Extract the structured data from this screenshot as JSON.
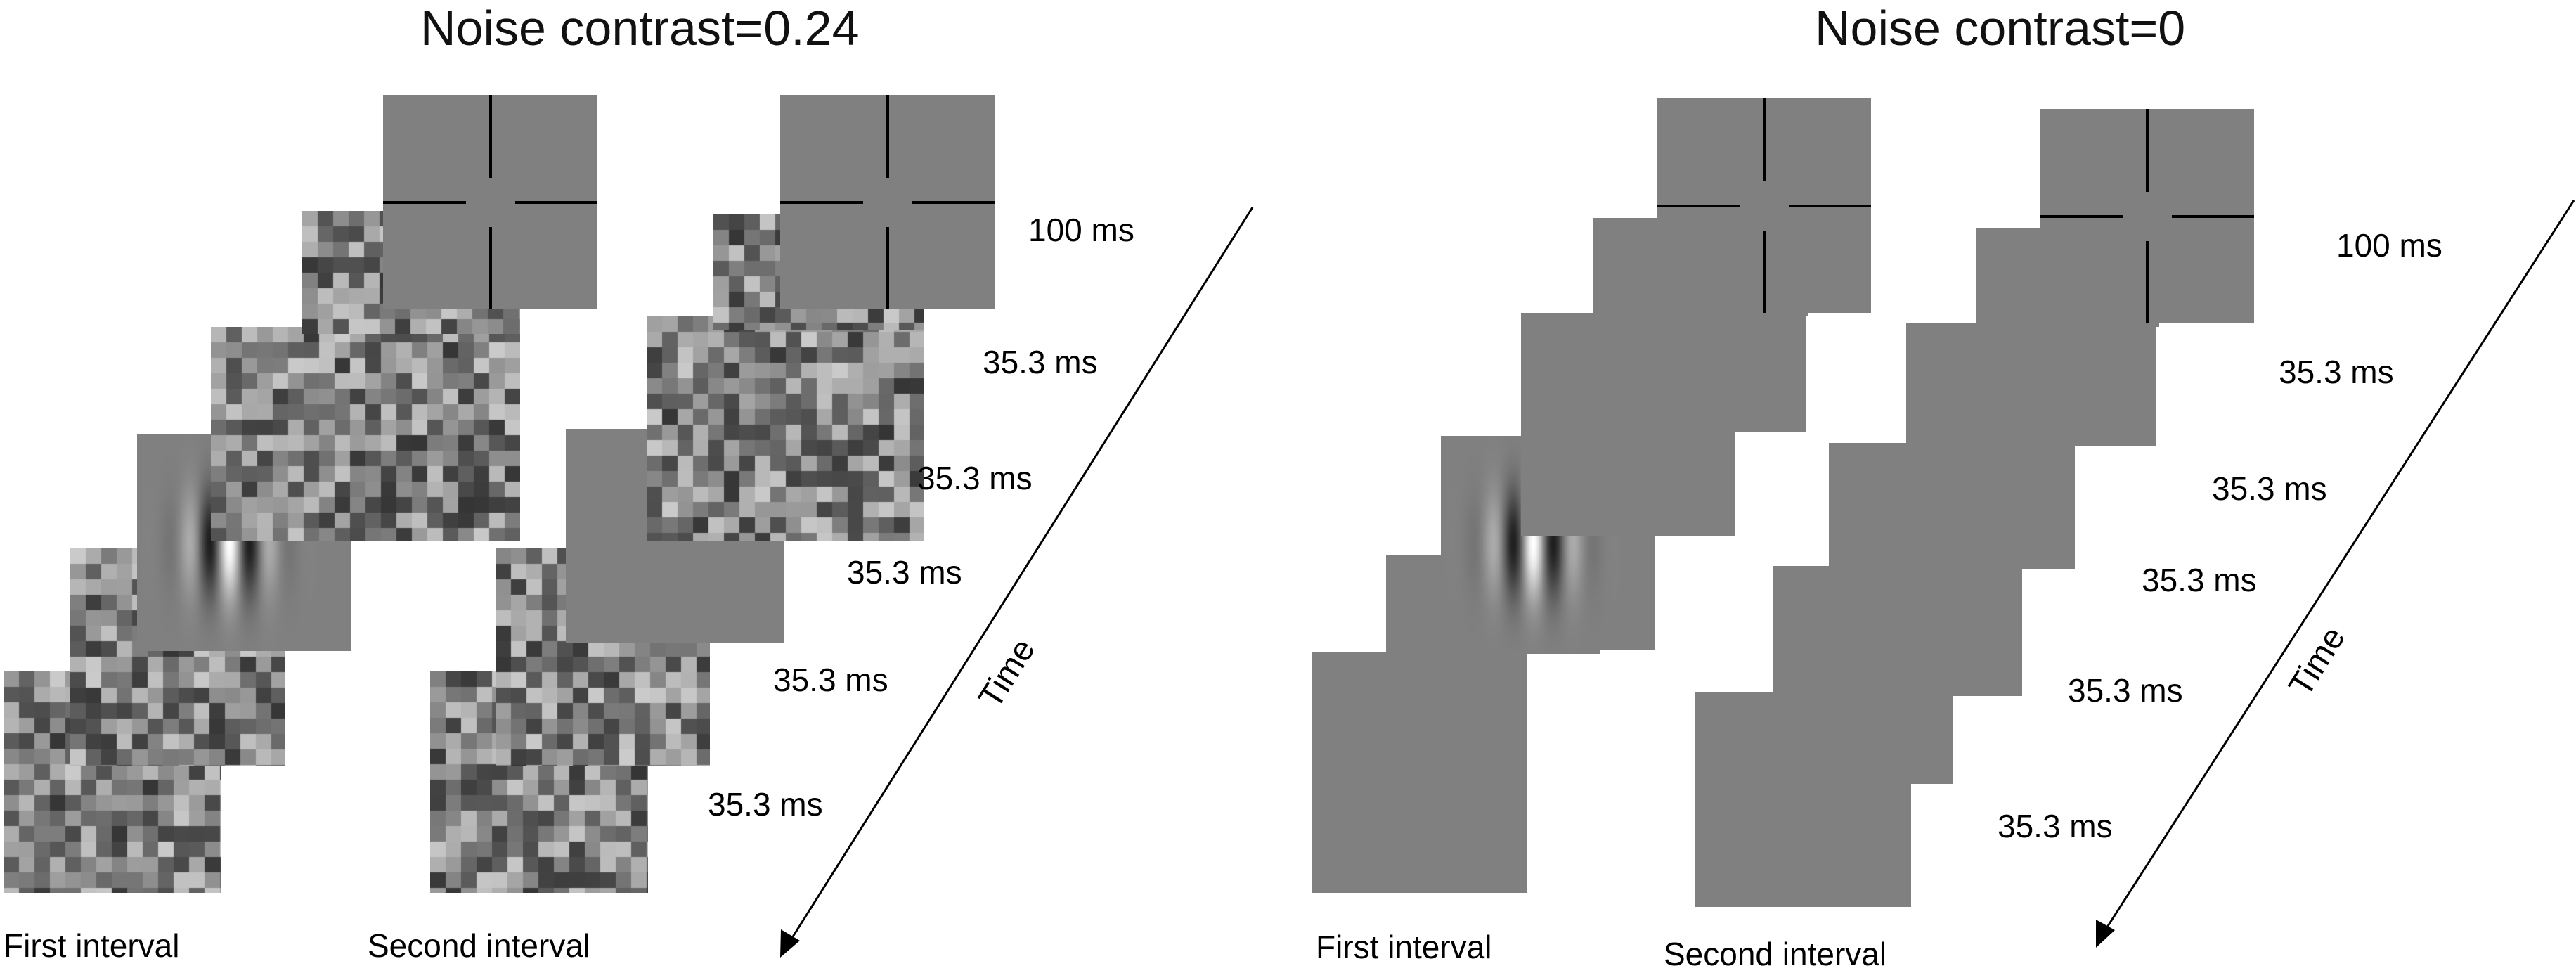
{
  "panels": [
    {
      "title": "Noise contrast=0.24",
      "noise": true,
      "durations": [
        "100 ms",
        "35.3 ms",
        "35.3 ms",
        "35.3 ms",
        "35.3 ms",
        "35.3 ms"
      ],
      "interval_labels": [
        "First  interval",
        "Second interval"
      ],
      "time_label": "Time"
    },
    {
      "title": "Noise contrast=0",
      "noise": false,
      "durations": [
        "100 ms",
        "35.3 ms",
        "35.3 ms",
        "35.3 ms",
        "35.3 ms",
        "35.3 ms"
      ],
      "interval_labels": [
        "First  interval",
        "Second interval"
      ],
      "time_label": "Time"
    }
  ],
  "colors": {
    "frame_gray": "#808080",
    "text": "#000000",
    "fixation": "#000000"
  }
}
